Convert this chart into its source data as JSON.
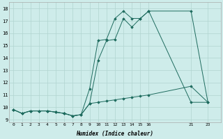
{
  "xlabel": "Humidex (Indice chaleur)",
  "bg_color": "#ceecea",
  "grid_color": "#b0d4d0",
  "line_color": "#1e6b5e",
  "xlim": [
    -0.5,
    24.5
  ],
  "ylim": [
    8.8,
    18.5
  ],
  "xticks": [
    0,
    1,
    2,
    3,
    4,
    5,
    6,
    7,
    8,
    9,
    10,
    11,
    12,
    13,
    14,
    15,
    16,
    21,
    23
  ],
  "yticks": [
    9,
    10,
    11,
    12,
    13,
    14,
    15,
    16,
    17,
    18
  ],
  "line1_x": [
    0,
    1,
    2,
    3,
    4,
    5,
    6,
    7,
    8,
    9,
    10,
    11,
    12,
    13,
    14,
    15,
    16,
    21,
    23
  ],
  "line1_y": [
    9.8,
    9.5,
    9.7,
    9.7,
    9.7,
    9.6,
    9.5,
    9.3,
    9.4,
    10.3,
    10.4,
    10.5,
    10.6,
    10.7,
    10.8,
    10.9,
    11.0,
    11.7,
    10.4
  ],
  "line2_x": [
    0,
    1,
    2,
    3,
    4,
    5,
    6,
    7,
    8,
    9,
    10,
    11,
    12,
    13,
    14,
    15,
    16,
    21,
    23
  ],
  "line2_y": [
    9.8,
    9.5,
    9.7,
    9.7,
    9.7,
    9.6,
    9.5,
    9.3,
    9.4,
    11.5,
    15.4,
    15.5,
    17.2,
    17.8,
    17.2,
    17.2,
    17.8,
    17.8,
    10.4
  ],
  "line3_x": [
    0,
    1,
    2,
    3,
    4,
    5,
    6,
    7,
    8,
    9,
    10,
    11,
    12,
    13,
    14,
    15,
    16,
    21,
    23
  ],
  "line3_y": [
    9.8,
    9.5,
    9.7,
    9.7,
    9.7,
    9.6,
    9.5,
    9.3,
    9.4,
    10.3,
    13.8,
    15.4,
    15.5,
    17.2,
    16.5,
    17.2,
    17.8,
    10.4,
    10.4
  ]
}
